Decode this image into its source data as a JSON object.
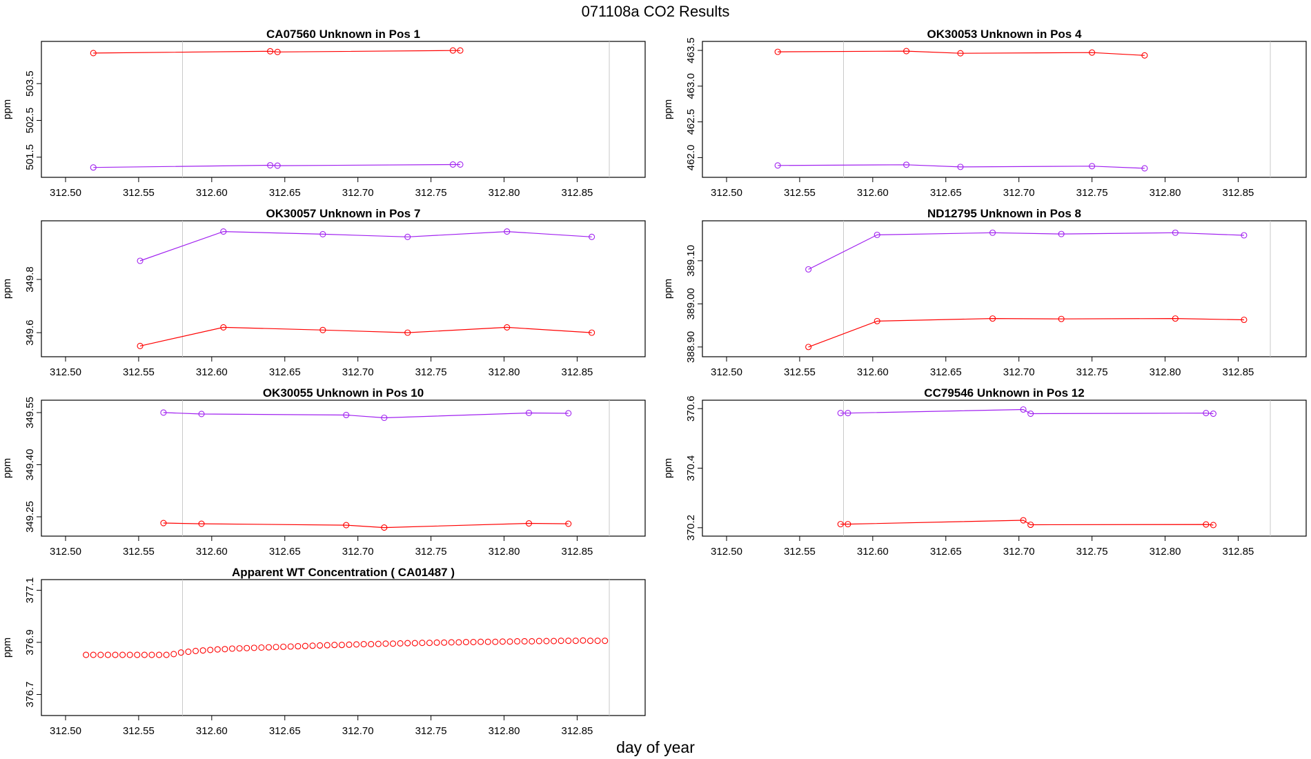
{
  "figure": {
    "title": "071108a  CO2 Results",
    "xlabel": "day of year"
  },
  "chart_data": [
    {
      "type": "line",
      "title": "CA07560    Unknown in Pos 1",
      "xlabel": "",
      "ylabel": "ppm",
      "xlim": [
        312.5,
        312.88
      ],
      "ylim": [
        501.1,
        504.5
      ],
      "xticks": [
        "312.50",
        "312.55",
        "312.60",
        "312.65",
        "312.70",
        "312.75",
        "312.80",
        "312.85"
      ],
      "yticks": [
        "501.5",
        "502.5",
        "503.5"
      ],
      "vlines": [
        312.58,
        312.872
      ],
      "series": [
        {
          "name": "red",
          "color": "#ff0000",
          "lines": true,
          "x": [
            312.519,
            312.64,
            312.645,
            312.765,
            312.77
          ],
          "y": [
            504.33,
            504.38,
            504.36,
            504.4,
            504.4
          ]
        },
        {
          "name": "purple",
          "color": "#a020f0",
          "lines": true,
          "x": [
            312.519,
            312.64,
            312.645,
            312.765,
            312.77
          ],
          "y": [
            501.22,
            501.28,
            501.27,
            501.3,
            501.3
          ]
        }
      ]
    },
    {
      "type": "line",
      "title": "OK30053    Unknown in Pos 4",
      "xlabel": "",
      "ylabel": "ppm",
      "xlim": [
        312.5,
        312.88
      ],
      "ylim": [
        461.8,
        463.55
      ],
      "xticks": [
        "312.50",
        "312.55",
        "312.60",
        "312.65",
        "312.70",
        "312.75",
        "312.80",
        "312.85"
      ],
      "yticks": [
        "462.0",
        "462.5",
        "463.0",
        "463.5"
      ],
      "vlines": [
        312.58,
        312.872
      ],
      "series": [
        {
          "name": "red",
          "color": "#ff0000",
          "lines": true,
          "x": [
            312.535,
            312.623,
            312.66,
            312.75,
            312.786
          ],
          "y": [
            463.48,
            463.49,
            463.46,
            463.47,
            463.43
          ]
        },
        {
          "name": "purple",
          "color": "#a020f0",
          "lines": true,
          "x": [
            312.535,
            312.623,
            312.66,
            312.75,
            312.786
          ],
          "y": [
            461.89,
            461.9,
            461.87,
            461.88,
            461.85
          ]
        }
      ]
    },
    {
      "type": "line",
      "title": "OK30057    Unknown in Pos 7",
      "xlabel": "",
      "ylabel": "ppm",
      "xlim": [
        312.5,
        312.88
      ],
      "ylim": [
        349.53,
        350.0
      ],
      "xticks": [
        "312.50",
        "312.55",
        "312.60",
        "312.65",
        "312.70",
        "312.75",
        "312.80",
        "312.85"
      ],
      "yticks": [
        "349.6",
        "349.8"
      ],
      "vlines": [
        312.58
      ],
      "series": [
        {
          "name": "purple",
          "color": "#a020f0",
          "lines": true,
          "x": [
            312.551,
            312.608,
            312.676,
            312.734,
            312.802,
            312.86
          ],
          "y": [
            349.87,
            349.98,
            349.97,
            349.96,
            349.98,
            349.96
          ]
        },
        {
          "name": "red",
          "color": "#ff0000",
          "lines": true,
          "x": [
            312.551,
            312.608,
            312.676,
            312.734,
            312.802,
            312.86
          ],
          "y": [
            349.55,
            349.62,
            349.61,
            349.6,
            349.62,
            349.6
          ]
        }
      ]
    },
    {
      "type": "line",
      "title": "ND12795    Unknown in Pos 8",
      "xlabel": "",
      "ylabel": "ppm",
      "xlim": [
        312.5,
        312.88
      ],
      "ylim": [
        388.89,
        389.18
      ],
      "xticks": [
        "312.50",
        "312.55",
        "312.60",
        "312.65",
        "312.70",
        "312.75",
        "312.80",
        "312.85"
      ],
      "yticks": [
        "388.90",
        "389.00",
        "389.10"
      ],
      "vlines": [
        312.58,
        312.872
      ],
      "series": [
        {
          "name": "purple",
          "color": "#a020f0",
          "lines": true,
          "x": [
            312.556,
            312.603,
            312.682,
            312.729,
            312.807,
            312.854
          ],
          "y": [
            389.08,
            389.16,
            389.165,
            389.162,
            389.165,
            389.159
          ]
        },
        {
          "name": "red",
          "color": "#ff0000",
          "lines": true,
          "x": [
            312.556,
            312.603,
            312.682,
            312.729,
            312.807,
            312.854
          ],
          "y": [
            388.9,
            388.96,
            388.966,
            388.965,
            388.966,
            388.963
          ]
        }
      ]
    },
    {
      "type": "line",
      "title": "OK30055    Unknown in Pos 10",
      "xlabel": "",
      "ylabel": "ppm",
      "xlim": [
        312.5,
        312.88
      ],
      "ylim": [
        349.21,
        349.57
      ],
      "xticks": [
        "312.50",
        "312.55",
        "312.60",
        "312.65",
        "312.70",
        "312.75",
        "312.80",
        "312.85"
      ],
      "yticks": [
        "349.25",
        "349.40",
        "349.55"
      ],
      "vlines": [
        312.58,
        312.872
      ],
      "series": [
        {
          "name": "purple",
          "color": "#a020f0",
          "lines": true,
          "x": [
            312.567,
            312.593,
            312.692,
            312.718,
            312.817,
            312.844
          ],
          "y": [
            349.55,
            349.546,
            349.543,
            349.535,
            349.549,
            349.548
          ]
        },
        {
          "name": "red",
          "color": "#ff0000",
          "lines": true,
          "x": [
            312.567,
            312.593,
            312.692,
            312.718,
            312.817,
            312.844
          ],
          "y": [
            349.232,
            349.23,
            349.226,
            349.219,
            349.231,
            349.23
          ]
        }
      ]
    },
    {
      "type": "line",
      "title": "CC79546    Unknown in Pos 12",
      "xlabel": "",
      "ylabel": "ppm",
      "xlim": [
        312.5,
        312.88
      ],
      "ylim": [
        370.19,
        370.61
      ],
      "xticks": [
        "312.50",
        "312.55",
        "312.60",
        "312.65",
        "312.70",
        "312.75",
        "312.80",
        "312.85"
      ],
      "yticks": [
        "370.2",
        "370.4",
        "370.6"
      ],
      "vlines": [
        312.58,
        312.872
      ],
      "series": [
        {
          "name": "purple",
          "color": "#a020f0",
          "lines": true,
          "x": [
            312.578,
            312.583,
            312.703,
            312.708,
            312.828,
            312.833
          ],
          "y": [
            370.585,
            370.585,
            370.597,
            370.583,
            370.585,
            370.583
          ]
        },
        {
          "name": "red",
          "color": "#ff0000",
          "lines": true,
          "x": [
            312.578,
            312.583,
            312.703,
            312.708,
            312.828,
            312.833
          ],
          "y": [
            370.212,
            370.212,
            370.225,
            370.21,
            370.211,
            370.209
          ]
        }
      ]
    },
    {
      "type": "scatter",
      "title": "Apparent WT Concentration ( CA01487 )",
      "xlabel": "",
      "ylabel": "ppm",
      "xlim": [
        312.5,
        312.88
      ],
      "ylim": [
        376.64,
        377.12
      ],
      "xticks": [
        "312.50",
        "312.55",
        "312.60",
        "312.65",
        "312.70",
        "312.75",
        "312.80",
        "312.85"
      ],
      "yticks": [
        "376.7",
        "376.9",
        "377.1"
      ],
      "vlines": [
        312.58,
        312.872
      ],
      "series": [
        {
          "name": "red",
          "color": "#ff0000",
          "lines": false,
          "x": [
            312.514,
            312.519,
            312.524,
            312.529,
            312.534,
            312.539,
            312.544,
            312.549,
            312.554,
            312.559,
            312.564,
            312.569,
            312.574,
            312.579,
            312.584,
            312.589,
            312.594,
            312.599,
            312.604,
            312.609,
            312.614,
            312.619,
            312.624,
            312.629,
            312.634,
            312.639,
            312.644,
            312.649,
            312.654,
            312.659,
            312.664,
            312.669,
            312.674,
            312.679,
            312.684,
            312.689,
            312.694,
            312.699,
            312.704,
            312.709,
            312.714,
            312.719,
            312.724,
            312.729,
            312.734,
            312.739,
            312.744,
            312.749,
            312.754,
            312.759,
            312.764,
            312.769,
            312.774,
            312.779,
            312.784,
            312.789,
            312.794,
            312.799,
            312.804,
            312.809,
            312.814,
            312.819,
            312.824,
            312.829,
            312.834,
            312.839,
            312.844,
            312.849,
            312.854,
            312.859,
            312.864,
            312.869
          ],
          "y": [
            376.852,
            376.852,
            376.852,
            376.852,
            376.852,
            376.852,
            376.852,
            376.852,
            376.852,
            376.852,
            376.852,
            376.852,
            376.855,
            376.861,
            376.864,
            376.867,
            376.869,
            376.871,
            376.873,
            376.874,
            376.876,
            376.877,
            376.878,
            376.879,
            376.88,
            376.881,
            376.882,
            376.883,
            376.884,
            376.885,
            376.886,
            376.887,
            376.888,
            376.889,
            376.89,
            376.89,
            376.891,
            376.892,
            376.893,
            376.893,
            376.894,
            376.895,
            376.895,
            376.896,
            376.897,
            376.897,
            376.898,
            376.898,
            376.899,
            376.899,
            376.9,
            376.9,
            376.901,
            376.901,
            376.902,
            376.902,
            376.902,
            376.903,
            376.903,
            376.904,
            376.904,
            376.904,
            376.905,
            376.905,
            376.905,
            376.906,
            376.906,
            376.906,
            376.907,
            376.906,
            376.906,
            376.906
          ]
        }
      ]
    }
  ]
}
